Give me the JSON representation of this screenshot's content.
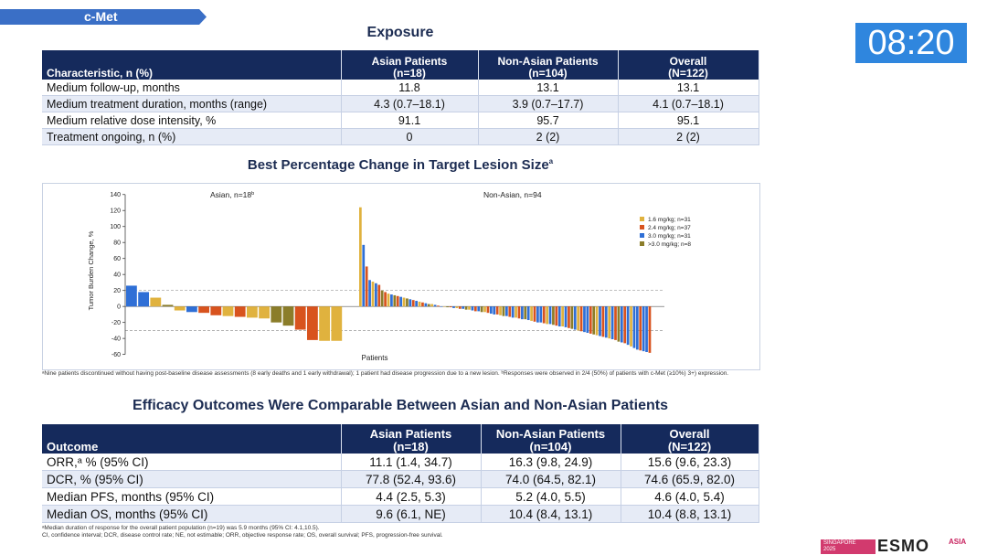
{
  "section_tab": "c-Met",
  "timer": "08:20",
  "exposure": {
    "title": "Exposure",
    "headers": [
      {
        "line1": "Characteristic, n (%)",
        "line2": ""
      },
      {
        "line1": "Asian Patients",
        "line2": "(n=18)"
      },
      {
        "line1": "Non-Asian Patients",
        "line2": "(n=104)"
      },
      {
        "line1": "Overall",
        "line2": "(N=122)"
      }
    ],
    "rows": [
      [
        "Medium follow-up, months",
        "11.8",
        "13.1",
        "13.1"
      ],
      [
        "Medium treatment duration, months (range)",
        "4.3 (0.7–18.1)",
        "3.9 (0.7–17.7)",
        "4.1 (0.7–18.1)"
      ],
      [
        "Medium relative dose intensity, %",
        "91.1",
        "95.7",
        "95.1"
      ],
      [
        "Treatment ongoing, n (%)",
        "0",
        "2 (2)",
        "2 (2)"
      ]
    ]
  },
  "chart_title": {
    "text": "Best Percentage Change in Target Lesion Size",
    "sup": "a"
  },
  "chart_data": {
    "type": "bar",
    "ylabel": "Tumor Burden Change, %",
    "xlabel": "Patients",
    "ylim": [
      -65,
      142
    ],
    "yticks": [
      140,
      120,
      100,
      80,
      60,
      40,
      20,
      0,
      -20,
      -40,
      -60
    ],
    "reference_lines": [
      20,
      -30
    ],
    "groups": [
      {
        "label": "Asian, n=18",
        "sup": "b"
      },
      {
        "label": "Non-Asian, n=94",
        "sup": ""
      }
    ],
    "legend": [
      {
        "label": "1.6 mg/kg; n=31",
        "color": "#e0b23e"
      },
      {
        "label": "2.4 mg/kg; n=37",
        "color": "#d8531e"
      },
      {
        "label": "3.0 mg/kg; n=31",
        "color": "#2f6fd6"
      },
      {
        "label": ">3.0 mg/kg; n=8",
        "color": "#8b7d2a"
      }
    ],
    "asian_values": [
      26,
      18,
      11,
      2,
      -5,
      -7,
      -8,
      -11,
      -12,
      -13,
      -14,
      -15,
      -20,
      -24,
      -29,
      -42,
      -43,
      -43
    ],
    "asian_dose": [
      2,
      2,
      0,
      3,
      0,
      2,
      1,
      1,
      0,
      1,
      0,
      0,
      3,
      3,
      1,
      1,
      0,
      0
    ],
    "nonasian_values": [
      124,
      77,
      50,
      33,
      31,
      29,
      27,
      20,
      18,
      16,
      15,
      14,
      13,
      12,
      11,
      10,
      9,
      8,
      7,
      6,
      5,
      4,
      3,
      3,
      2,
      1,
      0,
      0,
      -1,
      -1,
      -2,
      -2,
      -3,
      -3,
      -4,
      -4,
      -5,
      -6,
      -6,
      -7,
      -7,
      -8,
      -9,
      -10,
      -10,
      -11,
      -12,
      -12,
      -13,
      -14,
      -14,
      -15,
      -16,
      -16,
      -17,
      -18,
      -19,
      -20,
      -20,
      -21,
      -22,
      -22,
      -23,
      -24,
      -25,
      -25,
      -26,
      -27,
      -28,
      -29,
      -30,
      -31,
      -32,
      -33,
      -34,
      -35,
      -36,
      -37,
      -38,
      -39,
      -40,
      -41,
      -42,
      -44,
      -45,
      -46,
      -48,
      -50,
      -52,
      -54,
      -55,
      -56,
      -57,
      -58
    ],
    "nonasian_dose": [
      0,
      2,
      1,
      2,
      0,
      2,
      1,
      3,
      1,
      0,
      2,
      3,
      1,
      2,
      0,
      3,
      2,
      1,
      2,
      0,
      1,
      2,
      3,
      0,
      2,
      1,
      2,
      0,
      3,
      1,
      2,
      0,
      1,
      2,
      3,
      0,
      2,
      1,
      2,
      3,
      0,
      1,
      2,
      2,
      1,
      0,
      3,
      2,
      1,
      2,
      0,
      1,
      2,
      3,
      2,
      0,
      1,
      2,
      2,
      1,
      0,
      2,
      3,
      1,
      2,
      0,
      2,
      1,
      3,
      2,
      0,
      1,
      2,
      2,
      1,
      3,
      0,
      2,
      1,
      2,
      0,
      2,
      1,
      3,
      2,
      1,
      2,
      0,
      2,
      2,
      1,
      2,
      2,
      1
    ]
  },
  "chart_footnote": "ᵃNine patients discontinued without having post-baseline disease assessments (8 early deaths and 1 early withdrawal); 1 patient had disease progression due to a new lesion. ᵇResponses were observed in 2/4 (50%) of patients with c-Met (≥10%) 3+) expression.",
  "efficacy": {
    "title": "Efficacy Outcomes Were Comparable Between Asian and Non-Asian Patients",
    "headers": [
      {
        "line1": "Outcome",
        "line2": ""
      },
      {
        "line1": "Asian Patients",
        "line2": "(n=18)"
      },
      {
        "line1": "Non-Asian Patients",
        "line2": "(n=104)"
      },
      {
        "line1": "Overall",
        "line2": "(N=122)"
      }
    ],
    "rows": [
      [
        "ORR,ᵃ % (95% CI)",
        "11.1 (1.4, 34.7)",
        "16.3 (9.8, 24.9)",
        "15.6 (9.6, 23.3)"
      ],
      [
        "DCR, % (95% CI)",
        "77.8 (52.4, 93.6)",
        "74.0 (64.5, 82.1)",
        "74.6 (65.9, 82.0)"
      ],
      [
        "Median PFS, months (95% CI)",
        "4.4 (2.5, 5.3)",
        "5.2 (4.0, 5.5)",
        "4.6 (4.0, 5.4)"
      ],
      [
        "Median OS, months (95% CI)",
        "9.6 (6.1, NE)",
        "10.4 (8.4, 13.1)",
        "10.4 (8.8, 13.1)"
      ]
    ]
  },
  "efficacy_footnote_1": "ᵃMedian duration of response for the overall patient population (n=19) was 5.9 months (95% CI: 4.1,10.5).",
  "efficacy_footnote_2": "CI, confidence interval; DCR, disease control rate; NE, not estimable; ORR, objective response rate; OS, overall survival; PFS, progression-free survival.",
  "logo": {
    "location": "SINGAPORE",
    "year": "2025",
    "brand": "ESMO",
    "region": "ASIA"
  }
}
